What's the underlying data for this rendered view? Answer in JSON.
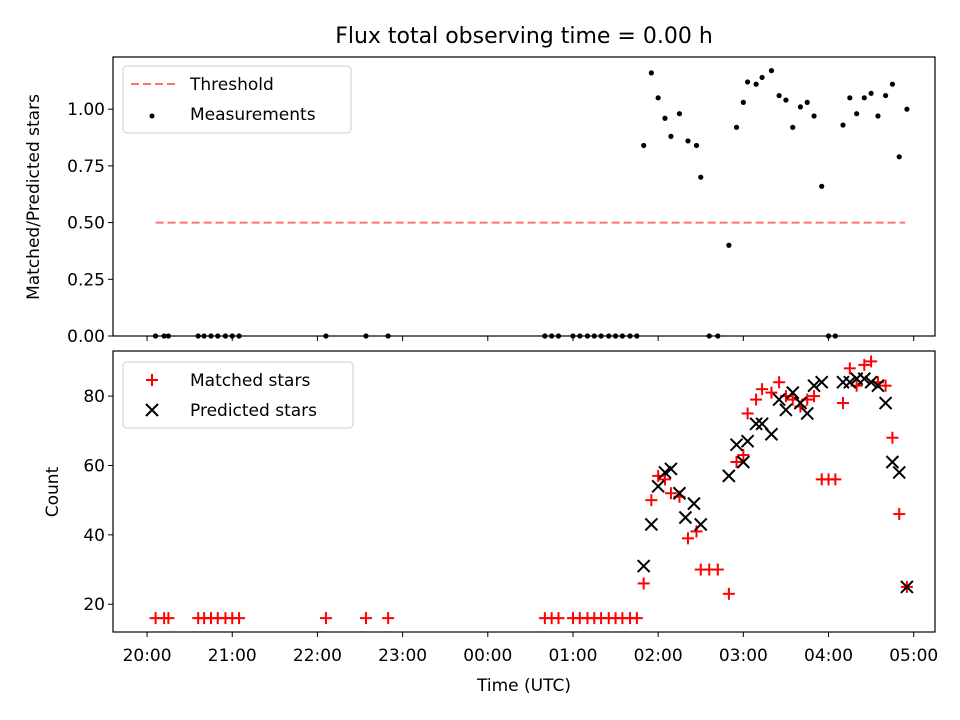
{
  "chart_data": [
    {
      "type": "line+scatter",
      "title": "Flux total observing time = 0.00 h",
      "xlabel": "",
      "ylabel": "Matched/Predicted stars",
      "xlim": [
        -4.4,
        5.25
      ],
      "ylim": [
        0.0,
        1.23
      ],
      "yticks": [
        0.0,
        0.25,
        0.5,
        0.75,
        1.0
      ],
      "ytick_labels": [
        "0.00",
        "0.25",
        "0.50",
        "0.75",
        "1.00"
      ],
      "xticks": [
        -4,
        -3,
        -2,
        -1,
        0,
        1,
        2,
        3,
        4,
        5
      ],
      "legend": [
        "Threshold",
        "Measurements"
      ],
      "legend_position": "top-left",
      "threshold": {
        "name": "Threshold",
        "value": 0.5,
        "x_range": [
          -3.9,
          4.9
        ],
        "color": "#ff7070"
      },
      "measurements": {
        "name": "Measurements",
        "color": "#000000",
        "x": [
          -3.9,
          -3.8,
          -3.75,
          -3.4,
          -3.33,
          -3.25,
          -3.17,
          -3.08,
          -3.0,
          -2.92,
          -1.9,
          -1.43,
          -1.17,
          0.67,
          0.75,
          0.83,
          1.0,
          1.08,
          1.17,
          1.25,
          1.33,
          1.42,
          1.5,
          1.58,
          1.67,
          1.75,
          1.83,
          1.92,
          2.0,
          2.08,
          2.15,
          2.25,
          2.35,
          2.45,
          2.5,
          2.6,
          2.7,
          2.83,
          2.92,
          3.0,
          3.05,
          3.15,
          3.22,
          3.33,
          3.42,
          3.5,
          3.58,
          3.67,
          3.75,
          3.83,
          3.92,
          4.0,
          4.08,
          4.17,
          4.25,
          4.33,
          4.42,
          4.5,
          4.58,
          4.67,
          4.75,
          4.83,
          4.92
        ],
        "y": [
          0,
          0,
          0,
          0,
          0,
          0,
          0,
          0,
          0,
          0,
          0,
          0,
          0,
          0,
          0,
          0,
          0,
          0,
          0,
          0,
          0,
          0,
          0,
          0,
          0,
          0,
          0.84,
          1.16,
          1.05,
          0.96,
          0.88,
          0.98,
          0.86,
          0.84,
          0.7,
          0,
          0,
          0.4,
          0.92,
          1.03,
          1.12,
          1.11,
          1.14,
          1.17,
          1.06,
          1.04,
          0.92,
          1.01,
          1.03,
          0.97,
          0.66,
          0,
          0,
          0.93,
          1.05,
          0.98,
          1.05,
          1.07,
          0.97,
          1.06,
          1.11,
          0.79,
          1.0
        ]
      }
    },
    {
      "type": "scatter",
      "xlabel": "Time (UTC)",
      "ylabel": "Count",
      "xlim": [
        -4.4,
        5.25
      ],
      "ylim": [
        12,
        93
      ],
      "yticks": [
        20,
        40,
        60,
        80
      ],
      "xticks": [
        -4,
        -3,
        -2,
        -1,
        0,
        1,
        2,
        3,
        4,
        5
      ],
      "xtick_labels": [
        "20:00",
        "21:00",
        "22:00",
        "23:00",
        "00:00",
        "01:00",
        "02:00",
        "03:00",
        "04:00",
        "05:00"
      ],
      "legend": [
        "Matched stars",
        "Predicted stars"
      ],
      "legend_position": "top-left",
      "series": [
        {
          "name": "Matched stars",
          "marker": "+",
          "color": "#ff0000",
          "x": [
            -3.9,
            -3.8,
            -3.75,
            -3.4,
            -3.33,
            -3.25,
            -3.17,
            -3.08,
            -3.0,
            -2.92,
            -1.9,
            -1.43,
            -1.17,
            0.67,
            0.75,
            0.83,
            1.0,
            1.08,
            1.17,
            1.25,
            1.33,
            1.42,
            1.5,
            1.58,
            1.67,
            1.75,
            1.83,
            1.92,
            2.0,
            2.08,
            2.15,
            2.25,
            2.35,
            2.45,
            2.5,
            2.6,
            2.7,
            2.83,
            2.92,
            3.0,
            3.05,
            3.15,
            3.22,
            3.33,
            3.42,
            3.5,
            3.58,
            3.67,
            3.75,
            3.83,
            3.92,
            4.0,
            4.08,
            4.17,
            4.25,
            4.33,
            4.42,
            4.5,
            4.58,
            4.67,
            4.75,
            4.83,
            4.92
          ],
          "y": [
            16,
            16,
            16,
            16,
            16,
            16,
            16,
            16,
            16,
            16,
            16,
            16,
            16,
            16,
            16,
            16,
            16,
            16,
            16,
            16,
            16,
            16,
            16,
            16,
            16,
            16,
            26,
            50,
            57,
            56,
            52,
            51,
            39,
            41,
            30,
            30,
            30,
            23,
            61,
            63,
            75,
            79,
            82,
            81,
            84,
            80,
            79,
            77,
            79,
            80,
            56,
            56,
            56,
            78,
            88,
            83,
            89,
            90,
            84,
            83,
            68,
            46,
            25
          ]
        },
        {
          "name": "Predicted stars",
          "marker": "x",
          "color": "#000000",
          "x": [
            1.83,
            1.92,
            2.0,
            2.08,
            2.15,
            2.25,
            2.32,
            2.42,
            2.5,
            2.83,
            2.92,
            3.0,
            3.05,
            3.15,
            3.22,
            3.33,
            3.42,
            3.5,
            3.58,
            3.67,
            3.75,
            3.83,
            3.92,
            4.17,
            4.25,
            4.33,
            4.42,
            4.5,
            4.58,
            4.67,
            4.75,
            4.83,
            4.92
          ],
          "y": [
            31,
            43,
            54,
            58,
            59,
            52,
            45,
            49,
            43,
            57,
            66,
            61,
            67,
            72,
            72,
            69,
            79,
            76,
            81,
            78,
            75,
            83,
            84,
            84,
            84,
            85,
            85,
            84,
            83,
            78,
            61,
            58,
            25
          ]
        }
      ]
    }
  ]
}
